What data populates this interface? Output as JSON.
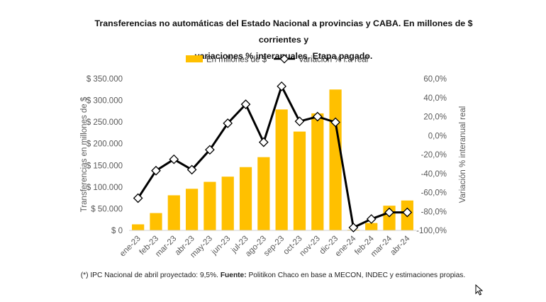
{
  "title_line1": "Transferencias no automáticas del Estado Nacional a provincias y CABA. En millones de $ corrientes y",
  "title_line2": "variaciones % interanuales. Etapa pagado.",
  "footnote": {
    "part1": "(*) IPC Nacional de abril proyectado: 9,5%. ",
    "bold": "Fuente:",
    "part2": " Politikon Chaco en base a MECON, INDEC y estimaciones propias."
  },
  "colors": {
    "bar": "#FFC000",
    "line": "#000000",
    "marker_fill": "#ffffff",
    "axis_text": "#595959"
  },
  "chart_data": {
    "type": "bar+line",
    "categories": [
      "ene-23",
      "feb-23",
      "mar-23",
      "abr-23",
      "may-23",
      "jun-23",
      "jul-23",
      "ago-23",
      "sep-23",
      "oct-23",
      "nov-23",
      "dic-23",
      "ene-24",
      "feb-24",
      "mar-24",
      "abr-24"
    ],
    "series": [
      {
        "name": "En millones de $",
        "type": "bar",
        "axis": "left",
        "values": [
          14000,
          40000,
          81000,
          96000,
          112000,
          124000,
          146000,
          169000,
          279000,
          228000,
          270000,
          325000,
          1500,
          17000,
          57000,
          69000
        ]
      },
      {
        "name": "Variación % i.a real",
        "type": "line",
        "axis": "right",
        "values": [
          -66,
          -37,
          -25,
          -36,
          -15,
          13,
          33,
          -7,
          52,
          15,
          20,
          14,
          -97,
          -88,
          -81,
          -81
        ]
      }
    ],
    "left_axis": {
      "label": "Transferencias en millones de $",
      "min": 0,
      "max": 350000,
      "step": 50000,
      "tick_labels": [
        "$ 0",
        "$ 50.000",
        "$ 100.000",
        "$ 150.000",
        "$ 200.000",
        "$ 250.000",
        "$ 300.000",
        "$ 350.000"
      ]
    },
    "right_axis": {
      "label": "Variación % interanual real",
      "min": -100,
      "max": 60,
      "step": 20,
      "tick_labels": [
        "-100,0%",
        "-80,0%",
        "-60,0%",
        "-40,0%",
        "-20,0%",
        "0,0%",
        "20,0%",
        "40,0%",
        "60,0%"
      ]
    },
    "legend_position": "top-center",
    "grid": false
  }
}
